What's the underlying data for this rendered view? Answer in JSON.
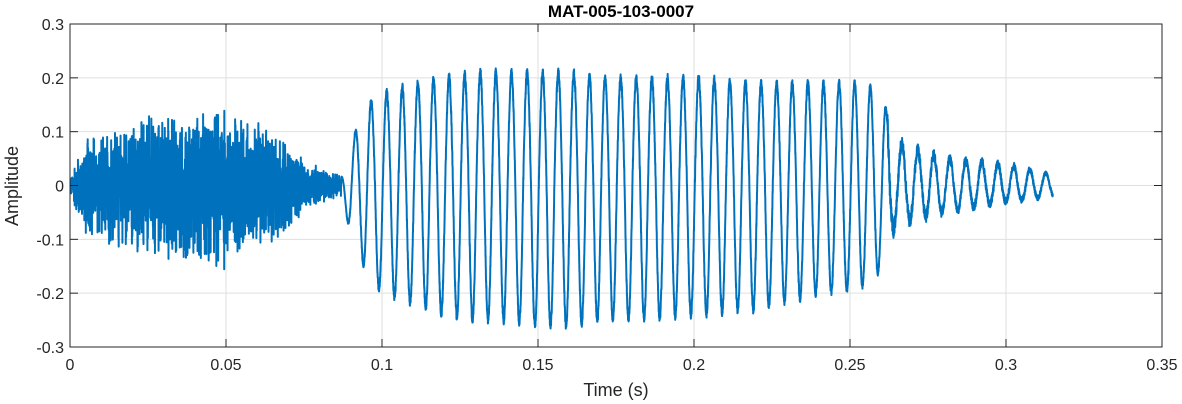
{
  "chart_data": {
    "type": "line",
    "title": "MAT-005-103-0007",
    "xlabel": "Time (s)",
    "ylabel": "Amplitude",
    "xlim": [
      0,
      0.35
    ],
    "ylim": [
      -0.3,
      0.3
    ],
    "xticks": [
      0,
      0.05,
      0.1,
      0.15,
      0.2,
      0.25,
      0.3,
      0.35
    ],
    "xtick_labels": [
      "0",
      "0.05",
      "0.1",
      "0.15",
      "0.2",
      "0.25",
      "0.3",
      "0.35"
    ],
    "yticks": [
      -0.3,
      -0.2,
      -0.1,
      0,
      0.1,
      0.2,
      0.3
    ],
    "ytick_labels": [
      "-0.3",
      "-0.2",
      "-0.1",
      "0",
      "0.1",
      "0.2",
      "0.3"
    ],
    "grid": true,
    "line_color": "#0072BD",
    "series": [
      {
        "x_start": 0,
        "x_end": 0.315,
        "envelope_times": [
          0,
          0.005,
          0.015,
          0.025,
          0.035,
          0.045,
          0.05,
          0.058,
          0.065,
          0.075,
          0.082,
          0.087,
          0.09,
          0.095,
          0.1,
          0.11,
          0.12,
          0.13,
          0.14,
          0.15,
          0.16,
          0.17,
          0.18,
          0.2,
          0.22,
          0.24,
          0.252,
          0.258,
          0.262,
          0.265,
          0.28,
          0.3,
          0.315
        ],
        "envelope_pos": [
          0.02,
          0.09,
          0.11,
          0.13,
          0.13,
          0.14,
          0.15,
          0.13,
          0.1,
          0.05,
          0.03,
          0.02,
          0.08,
          0.15,
          0.17,
          0.19,
          0.2,
          0.21,
          0.21,
          0.21,
          0.21,
          0.2,
          0.2,
          0.2,
          0.19,
          0.19,
          0.19,
          0.18,
          0.14,
          0.08,
          0.05,
          0.04,
          0.02
        ],
        "envelope_neg": [
          -0.02,
          -0.1,
          -0.12,
          -0.14,
          -0.15,
          -0.16,
          -0.16,
          -0.13,
          -0.11,
          -0.05,
          -0.03,
          -0.02,
          -0.09,
          -0.16,
          -0.2,
          -0.22,
          -0.24,
          -0.25,
          -0.25,
          -0.26,
          -0.26,
          -0.25,
          -0.25,
          -0.24,
          -0.23,
          -0.2,
          -0.19,
          -0.18,
          -0.1,
          -0.07,
          -0.05,
          -0.03,
          -0.02
        ],
        "segments": [
          {
            "t0": 0,
            "t1": 0.087,
            "kind": "noise",
            "freq_hz": 2200
          },
          {
            "t0": 0.087,
            "t1": 0.262,
            "kind": "tone",
            "freq_hz": 200
          },
          {
            "t0": 0.262,
            "t1": 0.315,
            "kind": "tone-noise",
            "freq_hz": 195
          }
        ]
      }
    ]
  }
}
